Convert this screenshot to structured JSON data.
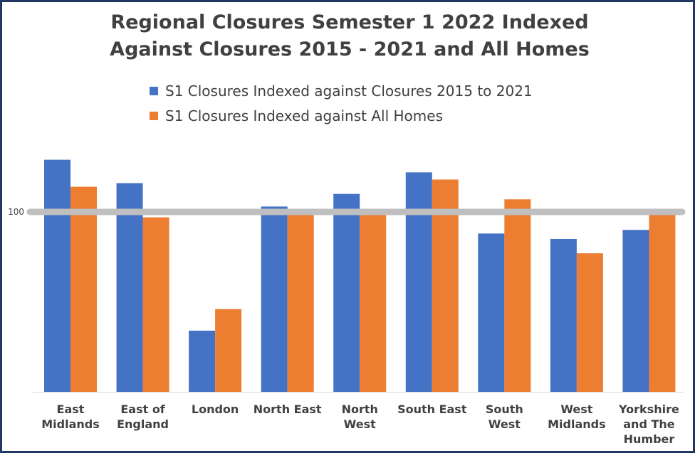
{
  "chart_data": {
    "type": "bar",
    "title_lines": [
      "Regional Closures Semester 1 2022 Indexed",
      "Against Closures 2015 - 2021 and All Homes"
    ],
    "categories": [
      "East Midlands",
      "East of England",
      "London",
      "North East",
      "North West",
      "South East",
      "South West",
      "West Midlands",
      "Yorkshire and The Humber"
    ],
    "category_label_lines": [
      [
        "East",
        "Midlands"
      ],
      [
        "East of",
        "England"
      ],
      [
        "London"
      ],
      [
        "North East"
      ],
      [
        "North",
        "West"
      ],
      [
        "South East"
      ],
      [
        "South",
        "West"
      ],
      [
        "West",
        "Midlands"
      ],
      [
        "Yorkshire",
        "and The",
        "Humber"
      ]
    ],
    "series": [
      {
        "name": "S1 Closures Indexed against Closures 2015 to 2021",
        "color": "#4472c4",
        "values": [
          129,
          116,
          34,
          103,
          110,
          122,
          88,
          85,
          90
        ]
      },
      {
        "name": "S1 Closures Indexed against All Homes",
        "color": "#ed7d31",
        "values": [
          114,
          97,
          46,
          99,
          99,
          118,
          107,
          77,
          99
        ]
      }
    ],
    "reference_line": {
      "value": 100,
      "label": "100",
      "color": "#bfbfbf"
    },
    "ylim": [
      0,
      140
    ],
    "xlabel": "",
    "ylabel": "",
    "legend_position": "top-center"
  },
  "frame_color": "#1f3864",
  "text_color": "#404040"
}
